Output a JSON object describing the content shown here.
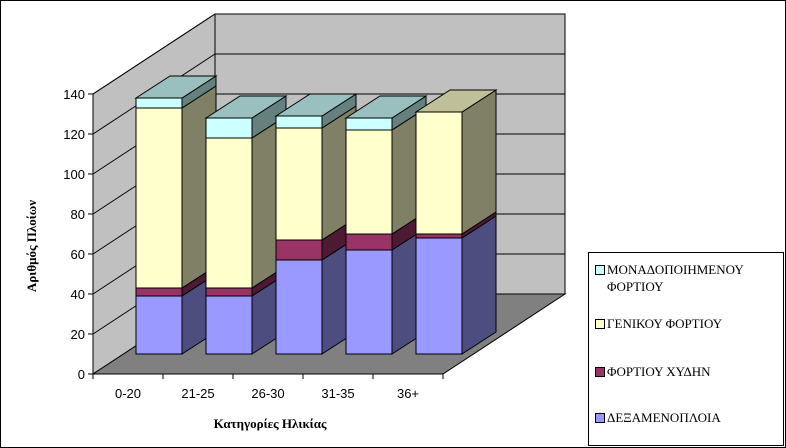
{
  "chart_data": {
    "type": "bar",
    "stacked": true,
    "three_d": true,
    "categories": [
      "0-20",
      "21-25",
      "26-30",
      "31-35",
      "36+"
    ],
    "series": [
      {
        "name": "ΔΕΞΑΜΕΝΟΠΛΟΙΑ",
        "values": [
          29,
          29,
          47,
          52,
          58
        ],
        "color": "#9999ff"
      },
      {
        "name": "ΦΟΡΤΙΟΥ ΧΥΔΗΝ",
        "values": [
          4,
          4,
          10,
          8,
          2
        ],
        "color": "#993366"
      },
      {
        "name": "ΓΕΝΙΚΟΥ ΦΟΡΤΙΟΥ",
        "values": [
          90,
          75,
          56,
          52,
          61
        ],
        "color": "#ffffcc"
      },
      {
        "name": "ΜΟΝΑΔΟΠΟΙΗΜΕΝΟΥ ΦΟΡΤΙΟΥ",
        "values": [
          5,
          10,
          6,
          6,
          0
        ],
        "color": "#ccffff"
      }
    ],
    "xlabel": "Κατηγορίες Ηλικίας",
    "ylabel": "Αριθμός Πλοίων",
    "ylim": [
      0,
      140
    ],
    "yticks": [
      0,
      20,
      40,
      60,
      80,
      100,
      120,
      140
    ],
    "grid": true,
    "legend_position": "right",
    "wall_color": "#c0c0c0",
    "floor_color": "#808080"
  }
}
